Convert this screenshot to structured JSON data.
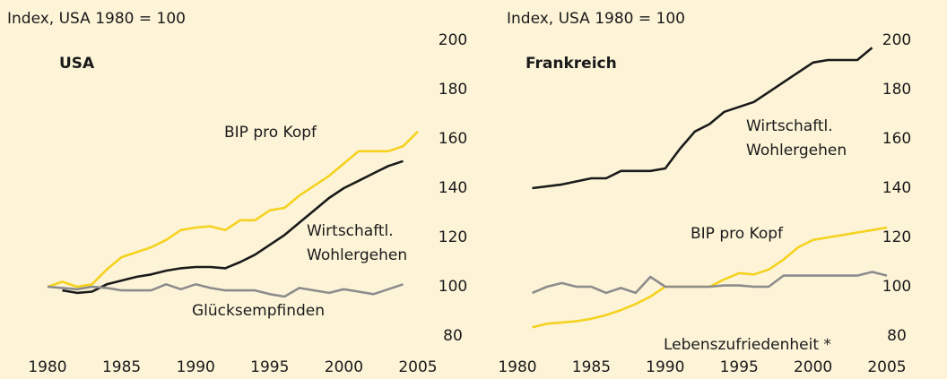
{
  "chart_data": [
    {
      "type": "line",
      "title": "USA",
      "subtitle": "Index, USA 1980 = 100",
      "xlim": [
        1980,
        2005
      ],
      "xticks": [
        1980,
        1985,
        1990,
        1995,
        2000,
        2005
      ],
      "ylim": [
        80,
        200
      ],
      "yticks": [
        80,
        100,
        120,
        140,
        160,
        180,
        200
      ],
      "series": [
        {
          "name": "BIP pro Kopf",
          "color": "#f5d21e",
          "x": [
            1980,
            1981,
            1982,
            1983,
            1984,
            1985,
            1986,
            1987,
            1988,
            1989,
            1990,
            1991,
            1992,
            1993,
            1994,
            1995,
            1996,
            1997,
            1998,
            1999,
            2000,
            2001,
            2002,
            2003,
            2004,
            2005
          ],
          "values": [
            100,
            102,
            100,
            101,
            107,
            112,
            114,
            116,
            119,
            123,
            124,
            124.5,
            123,
            127,
            127,
            131,
            132,
            137,
            141,
            145,
            150,
            155,
            155,
            155,
            157,
            163
          ]
        },
        {
          "name": "Wirtschaftl. Wohlergehen",
          "color": "#1a1a1a",
          "x": [
            1981,
            1982,
            1983,
            1984,
            1985,
            1986,
            1987,
            1988,
            1989,
            1990,
            1991,
            1992,
            1993,
            1994,
            1995,
            1996,
            1997,
            1998,
            1999,
            2000,
            2001,
            2002,
            2003,
            2004
          ],
          "values": [
            98.5,
            97.5,
            98,
            101,
            102.5,
            104,
            105,
            106.5,
            107.5,
            108,
            108,
            107.5,
            110,
            113,
            117,
            121,
            126,
            131,
            136,
            140,
            143,
            146,
            149,
            151
          ]
        },
        {
          "name": "Glücksempfinden",
          "color": "#8c8c8c",
          "x": [
            1980,
            1981,
            1982,
            1983,
            1984,
            1985,
            1986,
            1987,
            1988,
            1989,
            1990,
            1991,
            1992,
            1993,
            1994,
            1995,
            1996,
            1997,
            1998,
            1999,
            2000,
            2001,
            2002,
            2003,
            2004
          ],
          "values": [
            100,
            99.5,
            99,
            100,
            99.5,
            98.5,
            98.5,
            98.5,
            101,
            99,
            101,
            99.5,
            98.5,
            98.5,
            98.5,
            97,
            96,
            99.5,
            98.5,
            97.5,
            99,
            98,
            97,
            99,
            101
          ]
        }
      ]
    },
    {
      "type": "line",
      "title": "Frankreich",
      "subtitle": "Index, USA 1980 = 100",
      "xlim": [
        1980,
        2005
      ],
      "xticks": [
        1980,
        1985,
        1990,
        1995,
        2000,
        2005
      ],
      "ylim": [
        80,
        200
      ],
      "yticks": [
        80,
        100,
        120,
        140,
        160,
        180,
        200
      ],
      "series": [
        {
          "name": "Wirtschaftl. Wohlergehen",
          "color": "#1a1a1a",
          "x": [
            1981,
            1983,
            1985,
            1986,
            1987,
            1988,
            1989,
            1990,
            1991,
            1992,
            1993,
            1994,
            1995,
            1996,
            1997,
            1998,
            1999,
            2000,
            2001,
            2002,
            2003,
            2004
          ],
          "values": [
            140,
            141.5,
            144,
            144,
            147,
            147,
            147,
            148,
            156,
            163,
            166,
            171,
            173,
            175,
            179,
            183,
            187,
            191,
            192,
            192,
            192,
            197
          ]
        },
        {
          "name": "BIP pro Kopf",
          "color": "#f5d21e",
          "x": [
            1981,
            1982,
            1983,
            1984,
            1985,
            1986,
            1987,
            1988,
            1989,
            1990,
            1991,
            1992,
            1993,
            1994,
            1995,
            1996,
            1997,
            1998,
            1999,
            2000,
            2001,
            2002,
            2003,
            2004,
            2005
          ],
          "values": [
            83.5,
            85,
            85.5,
            86,
            87,
            88.5,
            90.5,
            93,
            96,
            100,
            100,
            100,
            100,
            103,
            105.5,
            105,
            107,
            111,
            116,
            119,
            120,
            121,
            122,
            123,
            124
          ]
        },
        {
          "name": "Lebenszufriedenheit *",
          "color": "#8c8c8c",
          "x": [
            1981,
            1982,
            1983,
            1984,
            1985,
            1986,
            1987,
            1988,
            1989,
            1990,
            1991,
            1992,
            1993,
            1994,
            1995,
            1996,
            1997,
            1998,
            1999,
            2000,
            2001,
            2002,
            2003,
            2004,
            2005
          ],
          "values": [
            97.5,
            100,
            101.5,
            100,
            100,
            97.5,
            99.5,
            97.5,
            104,
            100,
            100,
            100,
            100,
            100.5,
            100.5,
            100,
            100,
            104.5,
            104.5,
            104.5,
            104.5,
            104.5,
            104.5,
            106,
            104.5
          ]
        }
      ]
    }
  ]
}
